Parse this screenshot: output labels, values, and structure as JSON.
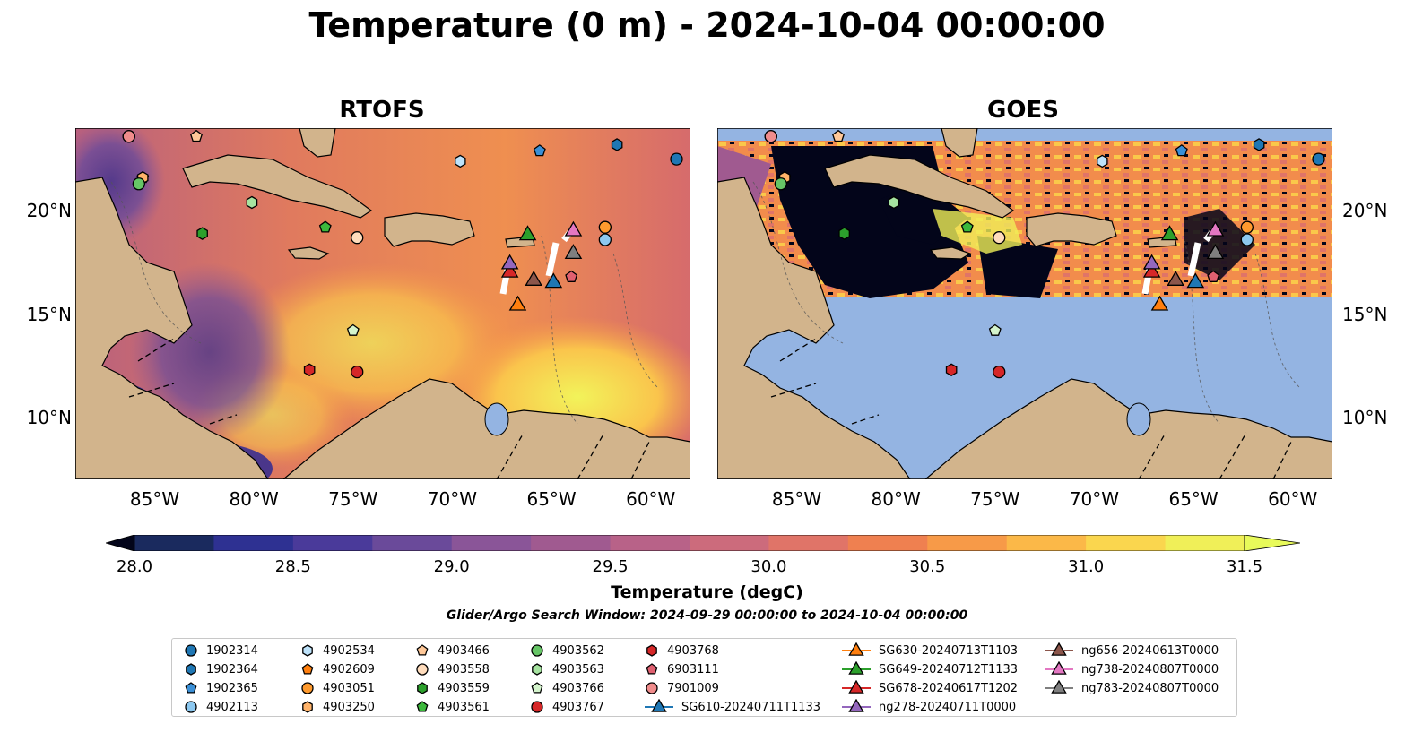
{
  "figure": {
    "title": "Temperature (0 m) - 2024-10-04 00:00:00",
    "subtitle": "Glider/Argo Search Window: 2024-09-29 00:00:00 to 2024-10-04 00:00:00"
  },
  "panels": [
    {
      "title": "RTOFS",
      "key": "rtofs"
    },
    {
      "title": "GOES",
      "key": "goes"
    }
  ],
  "axes": {
    "x_ticks": [
      "85°W",
      "80°W",
      "75°W",
      "70°W",
      "65°W",
      "60°W"
    ],
    "y_ticks": [
      "20°N",
      "15°N",
      "10°N"
    ],
    "x_values": [
      -85,
      -80,
      -75,
      -70,
      -65,
      -60
    ],
    "y_values": [
      20,
      15,
      10
    ],
    "lon_range": [
      -89,
      -58
    ],
    "lat_range": [
      7,
      24
    ]
  },
  "colorbar": {
    "label": "Temperature (degC)",
    "ticks": [
      "28.0",
      "28.5",
      "29.0",
      "29.5",
      "30.0",
      "30.5",
      "31.0",
      "31.5"
    ],
    "range": [
      28.0,
      31.5
    ],
    "extend": "both",
    "colors": [
      "#03051a",
      "#1a2a5e",
      "#2e3192",
      "#4a3a9a",
      "#6a4a9a",
      "#8a5598",
      "#a05a90",
      "#b86288",
      "#cc6b7c",
      "#e07468",
      "#ef8050",
      "#f79a48",
      "#fbb848",
      "#fad64e",
      "#f0ef58",
      "#e8fa5a"
    ]
  },
  "colors": {
    "land": "#d2b48c",
    "nodata": "#94b4e2",
    "ocean_mid": "#d96c6c"
  },
  "legend": [
    {
      "label": "1902314",
      "marker": "circle",
      "color": "#1f77b4"
    },
    {
      "label": "1902364",
      "marker": "hexagon",
      "color": "#1f77b4"
    },
    {
      "label": "1902365",
      "marker": "pentagon",
      "color": "#3a8fd6"
    },
    {
      "label": "4902113",
      "marker": "circle",
      "color": "#8cc8f0"
    },
    {
      "label": "4902534",
      "marker": "hexagon",
      "color": "#bde2fa"
    },
    {
      "label": "4902609",
      "marker": "pentagon",
      "color": "#ff7f0e"
    },
    {
      "label": "4903051",
      "marker": "circle",
      "color": "#ff9a2e"
    },
    {
      "label": "4903250",
      "marker": "hexagon",
      "color": "#ffb36a"
    },
    {
      "label": "4903466",
      "marker": "pentagon",
      "color": "#ffc898"
    },
    {
      "label": "4903558",
      "marker": "circle",
      "color": "#ffdcbc"
    },
    {
      "label": "4903559",
      "marker": "hexagon",
      "color": "#2ca02c"
    },
    {
      "label": "4903561",
      "marker": "pentagon",
      "color": "#3cb83c"
    },
    {
      "label": "4903562",
      "marker": "circle",
      "color": "#66c566"
    },
    {
      "label": "4903563",
      "marker": "hexagon",
      "color": "#a6e3a0"
    },
    {
      "label": "4903766",
      "marker": "pentagon",
      "color": "#d4f4cc"
    },
    {
      "label": "4903767",
      "marker": "circle",
      "color": "#d62728"
    },
    {
      "label": "4903768",
      "marker": "hexagon",
      "color": "#d62728"
    },
    {
      "label": "6903111",
      "marker": "pentagon",
      "color": "#e06070"
    },
    {
      "label": "7901009",
      "marker": "circle",
      "color": "#f08c8c"
    },
    {
      "label": "SG610-20240711T1133",
      "marker": "triangle-line",
      "color": "#1f77b4"
    },
    {
      "label": "SG630-20240713T1103",
      "marker": "triangle-line",
      "color": "#ff7f0e"
    },
    {
      "label": "SG649-20240712T1133",
      "marker": "triangle-line",
      "color": "#2ca02c"
    },
    {
      "label": "SG678-20240617T1202",
      "marker": "triangle-line",
      "color": "#d62728"
    },
    {
      "label": "ng278-20240711T0000",
      "marker": "triangle-line",
      "color": "#9467bd"
    },
    {
      "label": "ng656-20240613T0000",
      "marker": "triangle-line",
      "color": "#8c564b"
    },
    {
      "label": "ng738-20240807T0000",
      "marker": "triangle-line",
      "color": "#e377c2"
    },
    {
      "label": "ng783-20240807T0000",
      "marker": "triangle-line",
      "color": "#7f7f7f"
    }
  ],
  "markers": [
    {
      "id": "1902314",
      "lon": -58.7,
      "lat": 22.5
    },
    {
      "id": "1902364",
      "lon": -61.7,
      "lat": 23.2
    },
    {
      "id": "1902365",
      "lon": -65.6,
      "lat": 22.9
    },
    {
      "id": "4902113",
      "lon": -62.3,
      "lat": 18.6
    },
    {
      "id": "4902534",
      "lon": -69.6,
      "lat": 22.4
    },
    {
      "id": "4902609",
      "lon": -85.6,
      "lat": 21.6
    },
    {
      "id": "4903051",
      "lon": -62.3,
      "lat": 19.2
    },
    {
      "id": "4903250",
      "lon": -85.6,
      "lat": 21.6
    },
    {
      "id": "4903466",
      "lon": -82.9,
      "lat": 23.6
    },
    {
      "id": "4903558",
      "lon": -86.3,
      "lat": 23.6
    },
    {
      "id": "4903559",
      "lon": -82.6,
      "lat": 18.9
    },
    {
      "id": "4903561",
      "lon": -76.4,
      "lat": 19.2
    },
    {
      "id": "4903562",
      "lon": -85.8,
      "lat": 21.3
    },
    {
      "id": "4903563",
      "lon": -80.1,
      "lat": 20.4
    },
    {
      "id": "4903766",
      "lon": -75.0,
      "lat": 14.2
    },
    {
      "id": "4903767",
      "lon": -74.8,
      "lat": 12.2
    },
    {
      "id": "4903768",
      "lon": -77.2,
      "lat": 12.3
    },
    {
      "id": "6903111",
      "lon": -64.0,
      "lat": 16.8
    },
    {
      "id": "7901009",
      "lon": -86.3,
      "lat": 23.6
    },
    {
      "id": "4903558",
      "lon": -74.8,
      "lat": 18.7
    },
    {
      "id": "SG610-20240711T1133",
      "lon": -64.9,
      "lat": 16.6
    },
    {
      "id": "SG630-20240713T1103",
      "lon": -66.7,
      "lat": 15.5
    },
    {
      "id": "SG649-20240712T1133",
      "lon": -66.2,
      "lat": 18.9
    },
    {
      "id": "SG678-20240617T1202",
      "lon": -67.1,
      "lat": 17.1
    },
    {
      "id": "ng278-20240711T0000",
      "lon": -67.1,
      "lat": 17.5
    },
    {
      "id": "ng656-20240613T0000",
      "lon": -65.9,
      "lat": 16.7
    },
    {
      "id": "ng738-20240807T0000",
      "lon": -63.9,
      "lat": 19.1
    },
    {
      "id": "ng783-20240807T0000",
      "lon": -63.9,
      "lat": 18.0
    }
  ]
}
